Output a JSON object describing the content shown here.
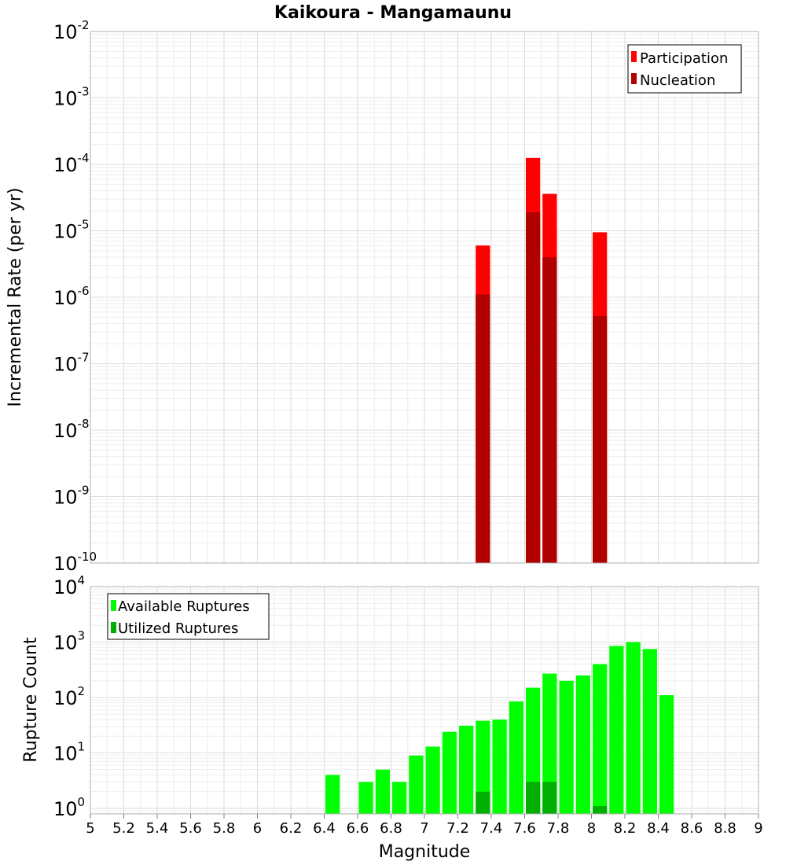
{
  "chart_data": {
    "title": "Kaikoura - Mangamaunu",
    "xlabel": "Magnitude",
    "xlim": [
      5,
      9
    ],
    "x_ticks": [
      "5",
      "5.2",
      "5.4",
      "5.6",
      "5.8",
      "6",
      "6.2",
      "6.4",
      "6.6",
      "6.8",
      "7",
      "7.2",
      "7.4",
      "7.6",
      "7.8",
      "8",
      "8.2",
      "8.4",
      "8.6",
      "8.8",
      "9"
    ],
    "bin_width": 0.1,
    "grid": true,
    "panels": [
      {
        "type": "bar",
        "scale": "log",
        "ylabel": "Incremental Rate (per yr)",
        "ylim_exp": [
          -10,
          -2
        ],
        "y_ticks": [
          {
            "base": "10",
            "exp": "-10"
          },
          {
            "base": "10",
            "exp": "-9"
          },
          {
            "base": "10",
            "exp": "-8"
          },
          {
            "base": "10",
            "exp": "-7"
          },
          {
            "base": "10",
            "exp": "-6"
          },
          {
            "base": "10",
            "exp": "-5"
          },
          {
            "base": "10",
            "exp": "-4"
          },
          {
            "base": "10",
            "exp": "-3"
          },
          {
            "base": "10",
            "exp": "-2"
          }
        ],
        "legend_position": "top-right",
        "series": [
          {
            "name": "Participation",
            "color": "#ff0000",
            "points": [
              [
                7.35,
                6e-06
              ],
              [
                7.65,
                0.000125
              ],
              [
                7.75,
                3.6e-05
              ],
              [
                8.05,
                9.5e-06
              ]
            ]
          },
          {
            "name": "Nucleation",
            "color": "#b00000",
            "points": [
              [
                7.35,
                1.1e-06
              ],
              [
                7.65,
                1.9e-05
              ],
              [
                7.75,
                4e-06
              ],
              [
                8.05,
                5.2e-07
              ]
            ]
          }
        ]
      },
      {
        "type": "bar",
        "scale": "log",
        "ylabel": "Rupture Count",
        "ylim_exp": [
          -0.1,
          4
        ],
        "y_ticks": [
          {
            "base": "10",
            "exp": "0"
          },
          {
            "base": "10",
            "exp": "1"
          },
          {
            "base": "10",
            "exp": "2"
          },
          {
            "base": "10",
            "exp": "3"
          },
          {
            "base": "10",
            "exp": "4"
          }
        ],
        "legend_position": "top-left",
        "series": [
          {
            "name": "Available Ruptures",
            "color": "#00ff00",
            "points": [
              [
                6.45,
                4
              ],
              [
                6.65,
                3
              ],
              [
                6.75,
                5
              ],
              [
                6.85,
                3
              ],
              [
                6.95,
                9
              ],
              [
                7.05,
                13
              ],
              [
                7.15,
                24
              ],
              [
                7.25,
                31
              ],
              [
                7.35,
                38
              ],
              [
                7.45,
                40
              ],
              [
                7.55,
                85
              ],
              [
                7.65,
                150
              ],
              [
                7.75,
                270
              ],
              [
                7.85,
                200
              ],
              [
                7.95,
                250
              ],
              [
                8.05,
                400
              ],
              [
                8.15,
                850
              ],
              [
                8.25,
                1000
              ],
              [
                8.35,
                750
              ],
              [
                8.45,
                110
              ]
            ]
          },
          {
            "name": "Utilized Ruptures",
            "color": "#00b000",
            "points": [
              [
                7.35,
                2
              ],
              [
                7.65,
                3
              ],
              [
                7.75,
                3
              ],
              [
                8.05,
                1.1
              ]
            ]
          }
        ]
      }
    ]
  }
}
